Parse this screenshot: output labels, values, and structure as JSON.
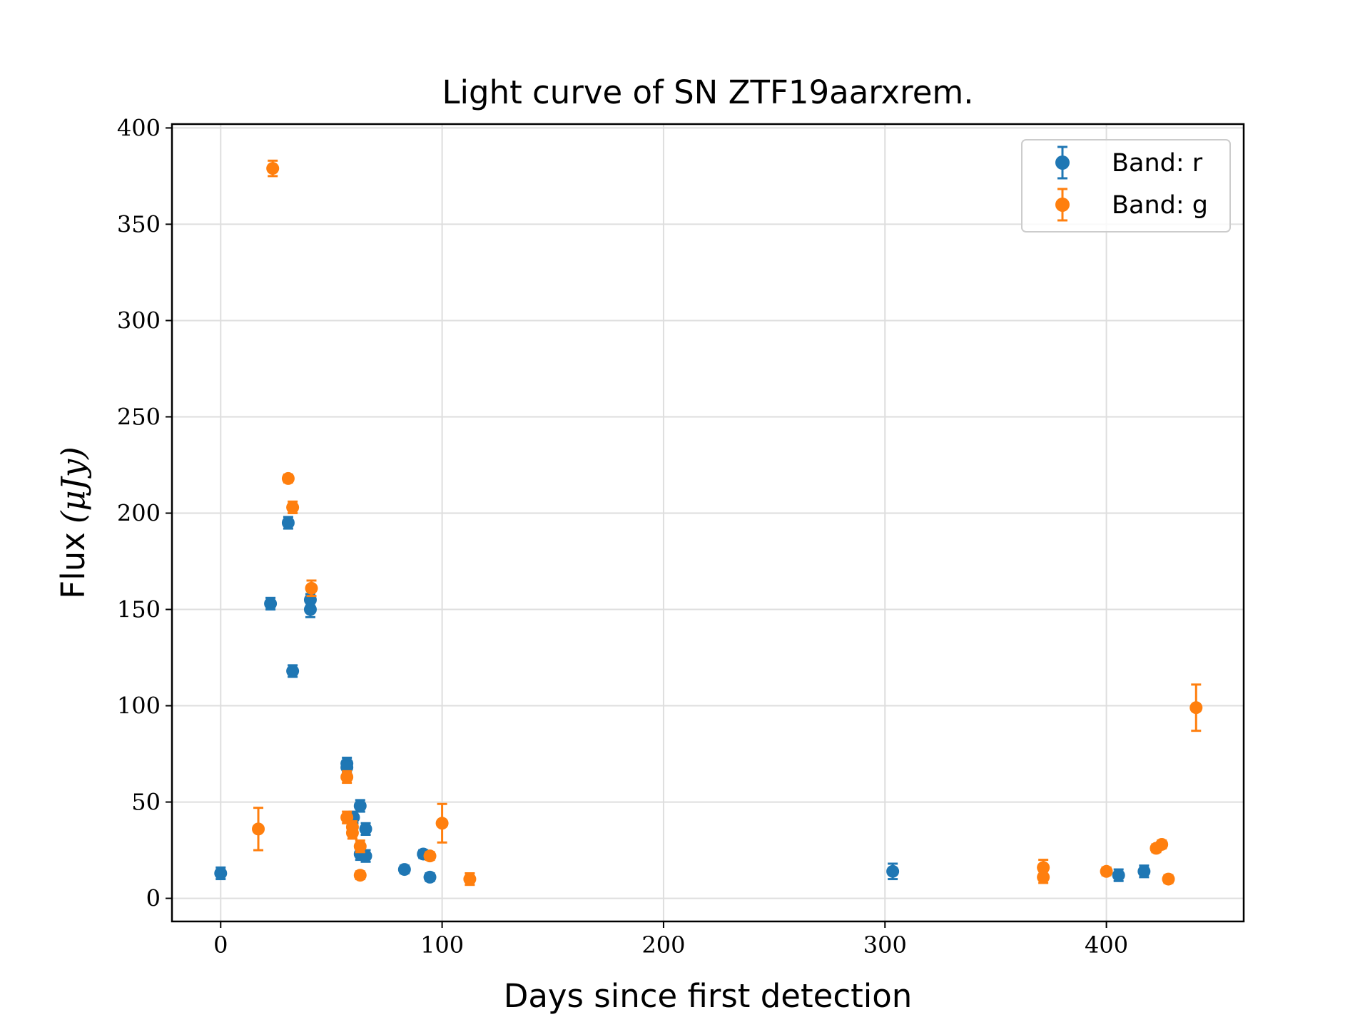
{
  "chart_data": {
    "type": "scatter",
    "title": "Light curve of SN ZTF19aarxrem.",
    "xlabel": "Days since first detection",
    "ylabel_text": "Flux",
    "ylabel_unit": "(μJy)",
    "xlim": [
      -22,
      462
    ],
    "ylim": [
      -12,
      402
    ],
    "xticks": [
      0,
      100,
      200,
      300,
      400
    ],
    "yticks": [
      0,
      50,
      100,
      150,
      200,
      250,
      300,
      350,
      400
    ],
    "grid": true,
    "legend_position": "top-right",
    "series": [
      {
        "name": "Band: r",
        "color": "#1f77b4",
        "points": [
          {
            "x": 0,
            "y": 13,
            "err": 3
          },
          {
            "x": 22.5,
            "y": 153,
            "err": 3
          },
          {
            "x": 30.5,
            "y": 195,
            "err": 3
          },
          {
            "x": 32.5,
            "y": 118,
            "err": 3
          },
          {
            "x": 40.5,
            "y": 155,
            "err": 3
          },
          {
            "x": 40.5,
            "y": 150,
            "err": 4
          },
          {
            "x": 57,
            "y": 70,
            "err": 3
          },
          {
            "x": 57,
            "y": 68,
            "err": 3
          },
          {
            "x": 60,
            "y": 42,
            "err": 3
          },
          {
            "x": 63,
            "y": 48,
            "err": 3
          },
          {
            "x": 63,
            "y": 23,
            "err": 3
          },
          {
            "x": 65.5,
            "y": 36,
            "err": 3
          },
          {
            "x": 65.5,
            "y": 22,
            "err": 3
          },
          {
            "x": 83,
            "y": 15,
            "err": 2
          },
          {
            "x": 91.5,
            "y": 23,
            "err": 2
          },
          {
            "x": 94.5,
            "y": 11,
            "err": 2
          },
          {
            "x": 303.5,
            "y": 14,
            "err": 4
          },
          {
            "x": 405.5,
            "y": 12,
            "err": 3
          },
          {
            "x": 417,
            "y": 14,
            "err": 3
          }
        ]
      },
      {
        "name": "Band: g",
        "color": "#ff7f0e",
        "points": [
          {
            "x": 17,
            "y": 36,
            "err": 11
          },
          {
            "x": 23.5,
            "y": 379,
            "err": 4
          },
          {
            "x": 30.5,
            "y": 218,
            "err": 2
          },
          {
            "x": 32.5,
            "y": 203,
            "err": 3
          },
          {
            "x": 41,
            "y": 161,
            "err": 4
          },
          {
            "x": 57,
            "y": 63,
            "err": 3
          },
          {
            "x": 57,
            "y": 42,
            "err": 3
          },
          {
            "x": 59.5,
            "y": 37,
            "err": 3
          },
          {
            "x": 59.5,
            "y": 34,
            "err": 3
          },
          {
            "x": 63,
            "y": 27,
            "err": 3
          },
          {
            "x": 63,
            "y": 12,
            "err": 2
          },
          {
            "x": 94.5,
            "y": 22,
            "err": 2
          },
          {
            "x": 100,
            "y": 39,
            "err": 10
          },
          {
            "x": 112.5,
            "y": 10,
            "err": 3
          },
          {
            "x": 371.5,
            "y": 16,
            "err": 4
          },
          {
            "x": 371.5,
            "y": 11,
            "err": 3
          },
          {
            "x": 400,
            "y": 14,
            "err": 2
          },
          {
            "x": 422.5,
            "y": 26,
            "err": 2
          },
          {
            "x": 425,
            "y": 28,
            "err": 2
          },
          {
            "x": 428,
            "y": 10,
            "err": 2
          },
          {
            "x": 440.5,
            "y": 99,
            "err": 12
          }
        ]
      }
    ]
  }
}
